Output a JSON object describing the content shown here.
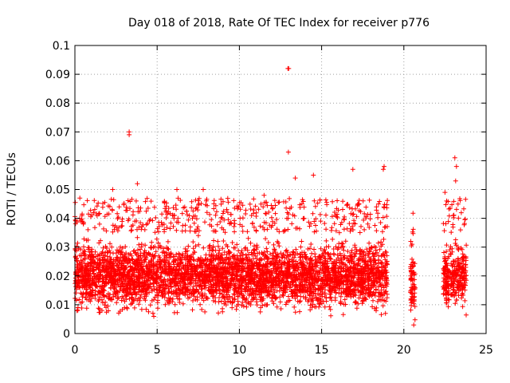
{
  "chart_data": {
    "type": "scatter",
    "title": "Day 018 of 2018, Rate Of TEC Index for receiver p776",
    "xlabel": "GPS time / hours",
    "ylabel": "ROTI / TECUs",
    "xlim": [
      0,
      25
    ],
    "ylim": [
      0,
      0.1
    ],
    "grid": true,
    "marker": "+",
    "color": "#ff0000",
    "x_ticks": [
      "0",
      "5",
      "10",
      "15",
      "20",
      "25"
    ],
    "y_ticks": [
      "0",
      "0.01",
      "0.02",
      "0.03",
      "0.04",
      "0.05",
      "0.06",
      "0.07",
      "0.08",
      "0.09",
      "0.1"
    ],
    "coverage": [
      {
        "name": "continuous",
        "x_range": [
          0,
          19.0
        ],
        "typical_roti": [
          0.005,
          0.035
        ]
      },
      {
        "name": "segment",
        "x_range": [
          20.4,
          20.7
        ],
        "typical_roti": [
          0.004,
          0.03
        ]
      },
      {
        "name": "segment",
        "x_range": [
          22.4,
          23.8
        ],
        "typical_roti": [
          0.005,
          0.035
        ]
      }
    ],
    "highlighted_points": [
      {
        "x": 3.3,
        "y": 0.07
      },
      {
        "x": 3.3,
        "y": 0.069
      },
      {
        "x": 12.95,
        "y": 0.092
      },
      {
        "x": 13.0,
        "y": 0.092
      },
      {
        "x": 12.98,
        "y": 0.063
      },
      {
        "x": 3.8,
        "y": 0.052
      },
      {
        "x": 2.3,
        "y": 0.05
      },
      {
        "x": 0.3,
        "y": 0.047
      },
      {
        "x": 6.2,
        "y": 0.05
      },
      {
        "x": 7.8,
        "y": 0.05
      },
      {
        "x": 11.5,
        "y": 0.048
      },
      {
        "x": 13.4,
        "y": 0.054
      },
      {
        "x": 14.5,
        "y": 0.055
      },
      {
        "x": 16.9,
        "y": 0.057
      },
      {
        "x": 18.8,
        "y": 0.058
      },
      {
        "x": 18.75,
        "y": 0.057
      },
      {
        "x": 23.1,
        "y": 0.061
      },
      {
        "x": 23.2,
        "y": 0.058
      },
      {
        "x": 23.15,
        "y": 0.053
      },
      {
        "x": 22.5,
        "y": 0.049
      },
      {
        "x": 22.6,
        "y": 0.046
      },
      {
        "x": 20.5,
        "y": 0.031
      },
      {
        "x": 20.6,
        "y": 0.003
      }
    ]
  }
}
